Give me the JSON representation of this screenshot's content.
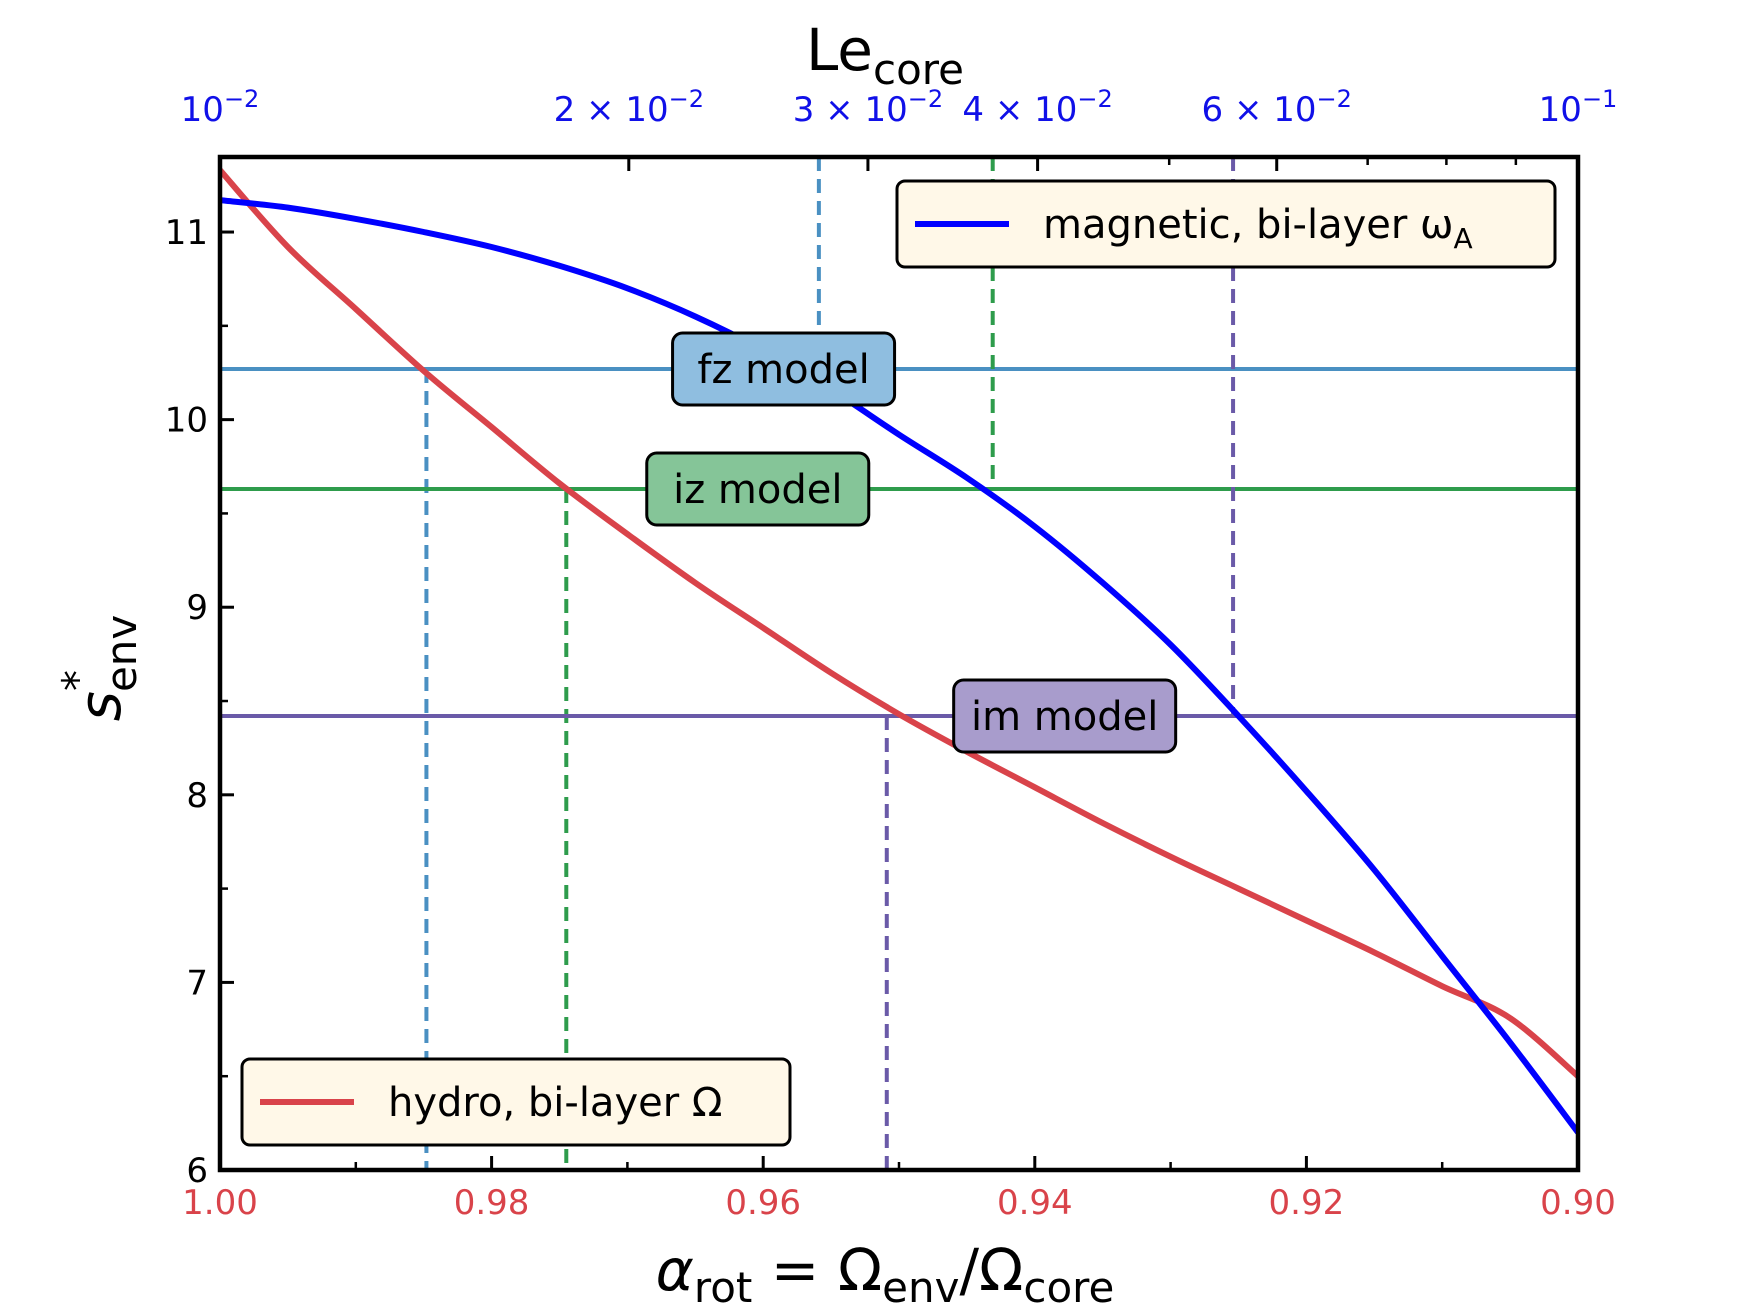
{
  "chart_data": {
    "type": "line",
    "x_axis": {
      "label_main": "α",
      "label_sub": "rot",
      "label_rest": " = Ω",
      "label_sub2": "env",
      "label_slash": "/Ω",
      "label_sub3": "core",
      "xlim": [
        1.0,
        0.9
      ],
      "ticks": [
        1.0,
        0.98,
        0.96,
        0.94,
        0.92,
        0.9
      ],
      "tick_labels": [
        "1.00",
        "0.98",
        "0.96",
        "0.94",
        "0.92",
        "0.90"
      ],
      "color": "#d9434a"
    },
    "top_axis": {
      "label_main": "Le",
      "label_sub": "core",
      "scale": "log",
      "xlim": [
        0.01,
        0.1
      ],
      "ticks": [
        0.01,
        0.02,
        0.03,
        0.04,
        0.06,
        0.1
      ],
      "tick_labels": [
        {
          "mant": "",
          "base": "10",
          "exp": "−2"
        },
        {
          "mant": "2 × ",
          "base": "10",
          "exp": "−2"
        },
        {
          "mant": "3 × ",
          "base": "10",
          "exp": "−2"
        },
        {
          "mant": "4 × ",
          "base": "10",
          "exp": "−2"
        },
        {
          "mant": "6 × ",
          "base": "10",
          "exp": "−2"
        },
        {
          "mant": "",
          "base": "10",
          "exp": "−1"
        }
      ],
      "minor_ticks": [
        0.05,
        0.07,
        0.08,
        0.09
      ],
      "color": "#1010e8"
    },
    "y_axis": {
      "label_main": "s",
      "label_sup": "*",
      "label_sub": "env",
      "ylim": [
        6,
        11.4
      ],
      "ticks": [
        6,
        7,
        8,
        9,
        10,
        11
      ],
      "tick_labels": [
        "6",
        "7",
        "8",
        "9",
        "10",
        "11"
      ]
    },
    "series": [
      {
        "name": "hydro, bi-layer Ω",
        "legend_main": "hydro, bi-layer Ω",
        "color": "#d9434a",
        "x": [
          1.0,
          0.995,
          0.99,
          0.985,
          0.98,
          0.975,
          0.97,
          0.965,
          0.96,
          0.955,
          0.95,
          0.945,
          0.94,
          0.935,
          0.93,
          0.925,
          0.92,
          0.915,
          0.91,
          0.905,
          0.9
        ],
        "y": [
          11.33,
          10.92,
          10.59,
          10.26,
          9.96,
          9.66,
          9.39,
          9.13,
          8.89,
          8.65,
          8.43,
          8.23,
          8.04,
          7.85,
          7.67,
          7.5,
          7.33,
          7.16,
          6.98,
          6.81,
          6.5
        ]
      },
      {
        "name": "magnetic, bi-layer ωA",
        "legend_main": "magnetic, bi-layer ω",
        "legend_sub": "A",
        "color": "#0000ff",
        "x": [
          1.0,
          0.995,
          0.99,
          0.985,
          0.98,
          0.975,
          0.97,
          0.965,
          0.96,
          0.955,
          0.95,
          0.945,
          0.94,
          0.935,
          0.93,
          0.925,
          0.92,
          0.915,
          0.91,
          0.905,
          0.9
        ],
        "y": [
          11.17,
          11.13,
          11.07,
          11.0,
          10.92,
          10.82,
          10.7,
          10.55,
          10.37,
          10.16,
          9.92,
          9.69,
          9.43,
          9.13,
          8.8,
          8.42,
          8.02,
          7.6,
          7.14,
          6.68,
          6.2
        ]
      }
    ],
    "models": [
      {
        "name": "fz model",
        "s": 10.27,
        "alpha_hydro": 0.9848,
        "alpha_mag": 0.9559,
        "line_color": "#4a90c2",
        "box_color": "#8fbee0"
      },
      {
        "name": "iz model",
        "s": 9.63,
        "alpha_hydro": 0.9745,
        "alpha_mag": 0.9431,
        "line_color": "#2e9c4c",
        "box_color": "#85c598"
      },
      {
        "name": "im model",
        "s": 8.42,
        "alpha_hydro": 0.9509,
        "alpha_mag": 0.9254,
        "line_color": "#6a5aa8",
        "box_color": "#a89ccc"
      }
    ],
    "legend_bg": "#fff8e8"
  }
}
